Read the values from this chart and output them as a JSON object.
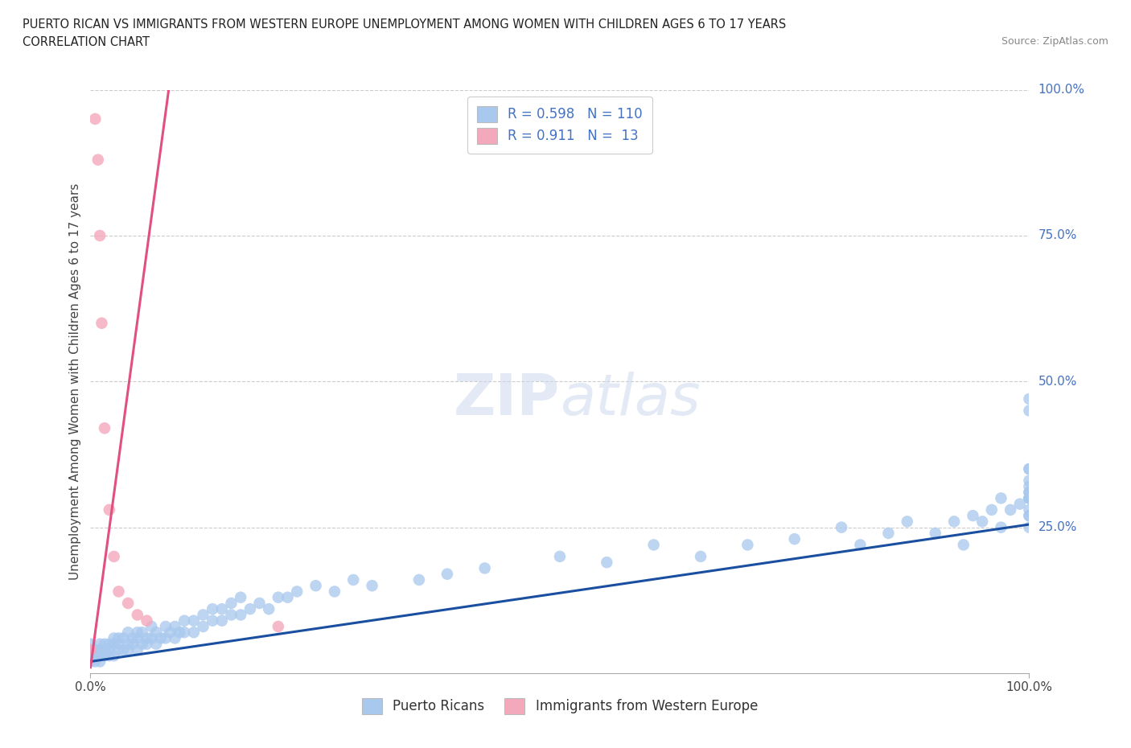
{
  "title_line1": "PUERTO RICAN VS IMMIGRANTS FROM WESTERN EUROPE UNEMPLOYMENT AMONG WOMEN WITH CHILDREN AGES 6 TO 17 YEARS",
  "title_line2": "CORRELATION CHART",
  "source": "Source: ZipAtlas.com",
  "ylabel": "Unemployment Among Women with Children Ages 6 to 17 years",
  "legend_label1": "Puerto Ricans",
  "legend_label2": "Immigrants from Western Europe",
  "r1": 0.598,
  "n1": 110,
  "r2": 0.911,
  "n2": 13,
  "color_blue": "#A8C8EE",
  "color_pink": "#F4A8BC",
  "color_blue_line": "#1A4FA0",
  "color_pink_line": "#E05080",
  "color_text_blue": "#4472C4",
  "watermark": "ZIPatlas",
  "xlim": [
    0.0,
    1.0
  ],
  "ylim": [
    0.0,
    1.0
  ],
  "blue_x": [
    0.0,
    0.0,
    0.0,
    0.0,
    0.005,
    0.005,
    0.005,
    0.01,
    0.01,
    0.01,
    0.01,
    0.015,
    0.015,
    0.015,
    0.02,
    0.02,
    0.02,
    0.025,
    0.025,
    0.025,
    0.03,
    0.03,
    0.03,
    0.035,
    0.035,
    0.04,
    0.04,
    0.04,
    0.045,
    0.045,
    0.05,
    0.05,
    0.05,
    0.055,
    0.055,
    0.06,
    0.06,
    0.065,
    0.065,
    0.07,
    0.07,
    0.075,
    0.08,
    0.08,
    0.085,
    0.09,
    0.09,
    0.095,
    0.1,
    0.1,
    0.11,
    0.11,
    0.12,
    0.12,
    0.13,
    0.13,
    0.14,
    0.14,
    0.15,
    0.15,
    0.16,
    0.16,
    0.17,
    0.18,
    0.19,
    0.2,
    0.21,
    0.22,
    0.24,
    0.26,
    0.28,
    0.3,
    0.35,
    0.38,
    0.42,
    0.5,
    0.55,
    0.6,
    0.65,
    0.7,
    0.75,
    0.8,
    0.82,
    0.85,
    0.87,
    0.9,
    0.92,
    0.93,
    0.94,
    0.95,
    0.96,
    0.97,
    0.97,
    0.98,
    0.99,
    1.0,
    1.0,
    1.0,
    1.0,
    1.0,
    1.0,
    1.0,
    1.0,
    1.0,
    1.0,
    1.0,
    1.0,
    1.0,
    1.0,
    1.0
  ],
  "blue_y": [
    0.02,
    0.03,
    0.04,
    0.05,
    0.02,
    0.03,
    0.04,
    0.02,
    0.03,
    0.04,
    0.05,
    0.03,
    0.04,
    0.05,
    0.03,
    0.04,
    0.05,
    0.03,
    0.05,
    0.06,
    0.04,
    0.05,
    0.06,
    0.04,
    0.06,
    0.04,
    0.05,
    0.07,
    0.05,
    0.06,
    0.04,
    0.06,
    0.07,
    0.05,
    0.07,
    0.05,
    0.06,
    0.06,
    0.08,
    0.05,
    0.07,
    0.06,
    0.06,
    0.08,
    0.07,
    0.06,
    0.08,
    0.07,
    0.07,
    0.09,
    0.07,
    0.09,
    0.08,
    0.1,
    0.09,
    0.11,
    0.09,
    0.11,
    0.1,
    0.12,
    0.1,
    0.13,
    0.11,
    0.12,
    0.11,
    0.13,
    0.13,
    0.14,
    0.15,
    0.14,
    0.16,
    0.15,
    0.16,
    0.17,
    0.18,
    0.2,
    0.19,
    0.22,
    0.2,
    0.22,
    0.23,
    0.25,
    0.22,
    0.24,
    0.26,
    0.24,
    0.26,
    0.22,
    0.27,
    0.26,
    0.28,
    0.3,
    0.25,
    0.28,
    0.29,
    0.27,
    0.3,
    0.32,
    0.3,
    0.35,
    0.3,
    0.28,
    0.33,
    0.31,
    0.35,
    0.31,
    0.27,
    0.25,
    0.45,
    0.47
  ],
  "pink_x": [
    0.0,
    0.005,
    0.008,
    0.01,
    0.012,
    0.015,
    0.02,
    0.025,
    0.03,
    0.04,
    0.05,
    0.06,
    0.2
  ],
  "pink_y": [
    0.04,
    0.95,
    0.88,
    0.75,
    0.6,
    0.42,
    0.28,
    0.2,
    0.14,
    0.12,
    0.1,
    0.09,
    0.08
  ],
  "blue_line_x": [
    0.0,
    1.0
  ],
  "blue_line_y": [
    0.02,
    0.255
  ],
  "pink_line_x": [
    0.0,
    0.085
  ],
  "pink_line_y": [
    0.01,
    1.02
  ]
}
